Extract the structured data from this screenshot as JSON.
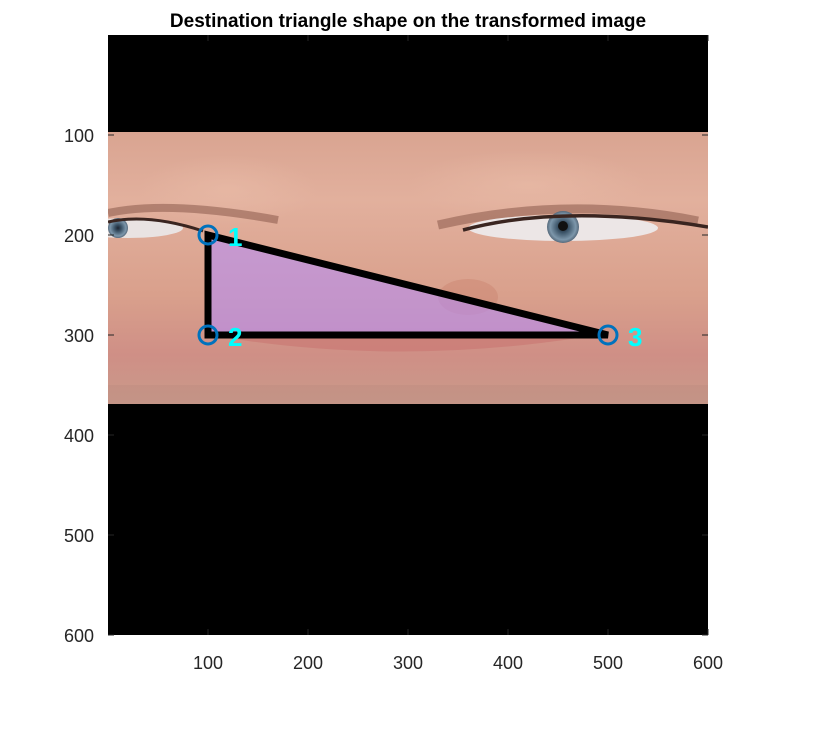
{
  "chart_data": {
    "type": "image-plot",
    "title": "Destination triangle shape on the transformed image",
    "xlim": [
      0,
      600
    ],
    "ylim": [
      0,
      600
    ],
    "y_reversed": true,
    "x_ticks": [
      100,
      200,
      300,
      400,
      500,
      600
    ],
    "y_ticks": [
      100,
      200,
      300,
      400,
      500,
      600
    ],
    "image_band": {
      "y_top": 97,
      "y_bottom": 369,
      "background": "#000000"
    },
    "points": [
      {
        "label": "1",
        "x": 100,
        "y": 200
      },
      {
        "label": "2",
        "x": 100,
        "y": 300
      },
      {
        "label": "3",
        "x": 500,
        "y": 300
      }
    ],
    "colors": {
      "triangle_edge": "#000000",
      "triangle_fill": "#b38cff",
      "marker": "#0072bd",
      "label": "#00ffff"
    },
    "grid": false
  }
}
